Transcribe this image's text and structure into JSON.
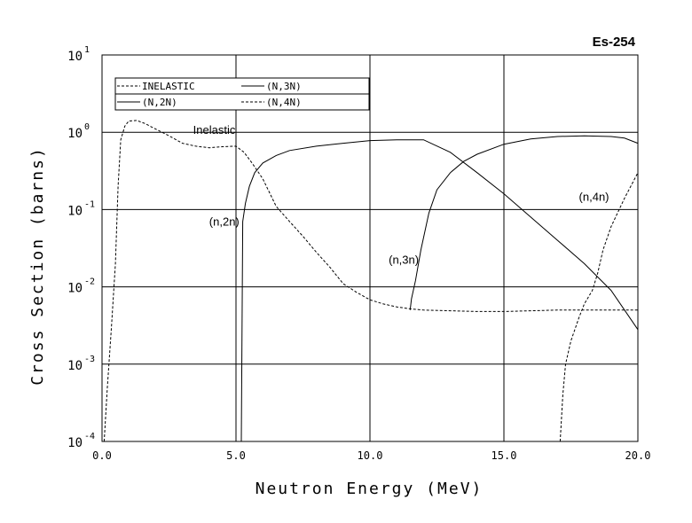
{
  "chart_data": {
    "type": "line",
    "title": "Es-254",
    "xlabel": "Neutron Energy (MeV)",
    "ylabel": "Cross Section (barns)",
    "xlim": [
      0,
      20
    ],
    "ylim": [
      0.0001,
      10
    ],
    "y_scale": "log",
    "grid": true,
    "x_ticks": [
      {
        "value": 0,
        "label": "0.0"
      },
      {
        "value": 5,
        "label": "5.0"
      },
      {
        "value": 10,
        "label": "10.0"
      },
      {
        "value": 15,
        "label": "15.0"
      },
      {
        "value": 20,
        "label": "20.0"
      }
    ],
    "y_ticks": [
      {
        "value": 0.0001,
        "base": "10",
        "exp": "-4"
      },
      {
        "value": 0.001,
        "base": "10",
        "exp": "-3"
      },
      {
        "value": 0.01,
        "base": "10",
        "exp": "-2"
      },
      {
        "value": 0.1,
        "base": "10",
        "exp": "-1"
      },
      {
        "value": 1,
        "base": "10",
        "exp": "0"
      },
      {
        "value": 10,
        "base": "10",
        "exp": "1"
      }
    ],
    "legend": {
      "placement": "top-left",
      "entries": [
        {
          "label": "INELASTIC",
          "series": "inelastic",
          "style": "dashed"
        },
        {
          "label": "(N,3N)",
          "series": "n3n",
          "style": "solid"
        },
        {
          "label": "(N,2N)",
          "series": "n2n",
          "style": "solid"
        },
        {
          "label": "(N,4N)",
          "series": "n4n",
          "style": "dashed"
        }
      ]
    },
    "series": [
      {
        "key": "inelastic",
        "style": "dashed",
        "x": [
          0.08,
          0.2,
          0.35,
          0.5,
          0.6,
          0.7,
          0.85,
          1.0,
          1.3,
          1.6,
          2.0,
          2.5,
          3.0,
          3.5,
          4.0,
          4.5,
          5.0,
          5.3,
          5.6,
          6.0,
          6.5,
          7.0,
          7.5,
          8.0,
          8.5,
          9.0,
          9.5,
          10.0,
          10.5,
          11.0,
          11.5,
          12.0,
          13.0,
          14.0,
          15.0,
          16.0,
          17.0,
          18.0,
          19.0,
          20.0
        ],
        "y": [
          0.0001,
          0.0005,
          0.003,
          0.02,
          0.2,
          0.8,
          1.2,
          1.4,
          1.42,
          1.3,
          1.1,
          0.9,
          0.72,
          0.66,
          0.63,
          0.65,
          0.66,
          0.55,
          0.4,
          0.25,
          0.11,
          0.07,
          0.045,
          0.028,
          0.018,
          0.011,
          0.0085,
          0.0068,
          0.006,
          0.0055,
          0.0052,
          0.005,
          0.0049,
          0.0048,
          0.0048,
          0.0049,
          0.005,
          0.005,
          0.005,
          0.005
        ]
      },
      {
        "key": "n2n",
        "style": "solid",
        "x": [
          5.2,
          5.25,
          5.35,
          5.5,
          5.7,
          6.0,
          6.5,
          7.0,
          8.0,
          9.0,
          10.0,
          11.0,
          12.0,
          13.0,
          14.0,
          15.0,
          16.0,
          17.0,
          18.0,
          19.0,
          20.0
        ],
        "y": [
          0.0001,
          0.07,
          0.12,
          0.2,
          0.3,
          0.4,
          0.5,
          0.58,
          0.66,
          0.72,
          0.78,
          0.8,
          0.8,
          0.55,
          0.3,
          0.16,
          0.08,
          0.04,
          0.02,
          0.009,
          0.0028
        ]
      },
      {
        "key": "n3n",
        "style": "solid",
        "x": [
          11.5,
          11.55,
          11.7,
          11.9,
          12.2,
          12.5,
          13.0,
          13.5,
          14.0,
          15.0,
          16.0,
          17.0,
          18.0,
          19.0,
          19.5,
          20.0
        ],
        "y": [
          0.005,
          0.007,
          0.012,
          0.03,
          0.09,
          0.18,
          0.3,
          0.42,
          0.52,
          0.7,
          0.82,
          0.88,
          0.9,
          0.88,
          0.84,
          0.72
        ]
      },
      {
        "key": "n4n",
        "style": "dashed",
        "x": [
          17.1,
          17.2,
          17.3,
          17.5,
          17.8,
          18.0,
          18.3,
          18.5,
          18.7,
          19.0,
          19.5,
          20.0
        ],
        "y": [
          0.0001,
          0.0004,
          0.001,
          0.002,
          0.004,
          0.006,
          0.009,
          0.015,
          0.03,
          0.06,
          0.14,
          0.3
        ]
      }
    ],
    "annotations": [
      {
        "text": "Inelastic",
        "x": 3.4,
        "y": 0.95
      },
      {
        "text": "(n,2n)",
        "x": 4.0,
        "y": 0.062
      },
      {
        "text": "(n,3n)",
        "x": 10.7,
        "y": 0.02
      },
      {
        "text": "(n,4n)",
        "x": 17.8,
        "y": 0.13
      }
    ]
  }
}
